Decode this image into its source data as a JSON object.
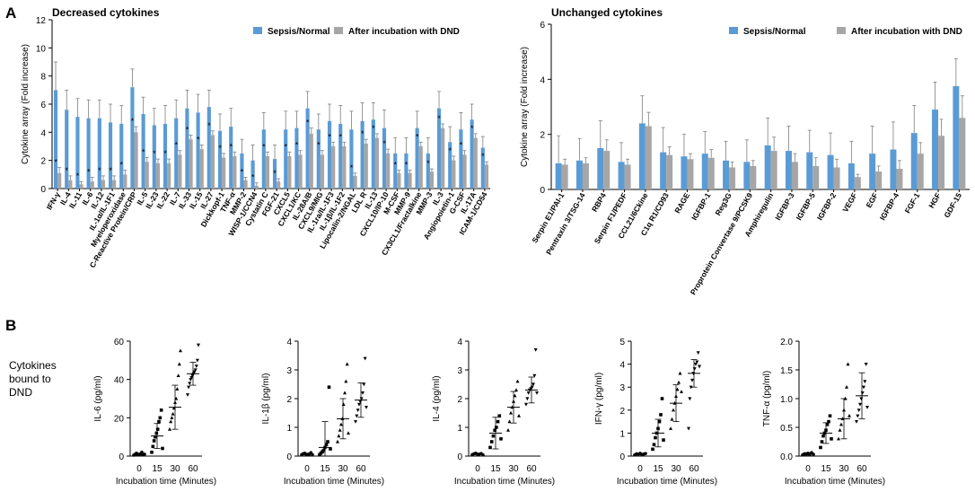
{
  "figure": {
    "panel_a_label": "A",
    "panel_b_label": "B",
    "cytokines_bound_label_lines": [
      "Cytokines",
      "bound to",
      "DND"
    ]
  },
  "colors": {
    "sepsis": "#5b9bd5",
    "dnd": "#a6a6a6",
    "axis": "#000000",
    "error": "#7f7f7f"
  },
  "chart_data": [
    {
      "id": "decreased",
      "type": "bar",
      "title": "Decreased cytokines",
      "ylabel": "Cytokine array (Fold increase)",
      "ylim": [
        0,
        12
      ],
      "yticks": [
        0,
        2,
        4,
        6,
        8,
        10,
        12
      ],
      "legend": [
        "Sepsis/Normal",
        "After incubation with DND"
      ],
      "legend_position": "top-right",
      "categories": [
        "IFN-γ",
        "IL-4",
        "IL-11",
        "IL-6",
        "IL-12",
        "IL-1α/IL-1F1",
        "Myeloperoxidase",
        "C-Reactive Protein/CRP",
        "IL-5",
        "IL-23",
        "IL-22",
        "IL-7",
        "IL-33",
        "IL-15",
        "IL-27",
        "Dickkopf-1",
        "TNF-α",
        "MMP-2",
        "WISP-1/CCN4",
        "Cystatin C",
        "FGF-21",
        "CXCL5",
        "CXCL1/KC",
        "IL-28A/B",
        "CXCL9/MIG",
        "IL-1ra/IL-1F3",
        "IL-1β/IL-1F2",
        "Lipocalin-2/NGAL",
        "LDL R",
        "IL-13",
        "CXCL10/IP-10",
        "M-CSF",
        "MMP-9",
        "CX3CL1/Fractalkine",
        "MMP-3",
        "IL-3",
        "Angiopoietin-1",
        "G-CSF",
        "IL-17A",
        "ICAM-1/CD54"
      ],
      "series": [
        {
          "name": "Sepsis/Normal",
          "values": [
            7.0,
            5.6,
            5.1,
            5.0,
            5.0,
            4.7,
            4.6,
            7.2,
            5.3,
            4.5,
            4.6,
            5.0,
            5.7,
            5.4,
            5.8,
            4.1,
            4.4,
            2.5,
            2.0,
            4.2,
            2.1,
            4.2,
            4.3,
            5.7,
            4.2,
            4.8,
            4.6,
            4.2,
            4.8,
            4.9,
            4.3,
            2.5,
            2.5,
            4.3,
            2.5,
            5.7,
            3.3,
            4.2,
            4.9,
            2.9
          ],
          "errors": [
            2.0,
            1.4,
            1.3,
            1.3,
            1.3,
            1.3,
            1.3,
            1.3,
            1.2,
            1.2,
            1.3,
            1.3,
            1.3,
            1.3,
            1.2,
            1.2,
            1.3,
            1.0,
            1.1,
            1.2,
            1.0,
            1.3,
            1.2,
            1.2,
            1.1,
            1.2,
            1.3,
            1.3,
            1.3,
            1.2,
            1.3,
            1.1,
            1.1,
            1.2,
            1.1,
            1.2,
            1.1,
            1.2,
            1.1,
            0.8
          ]
        },
        {
          "name": "After incubation with DND",
          "values": [
            1.1,
            0.6,
            0.3,
            0.5,
            0.6,
            0.6,
            1.0,
            4.0,
            1.9,
            1.8,
            1.8,
            2.4,
            3.5,
            2.8,
            3.8,
            2.2,
            2.3,
            0.6,
            0.2,
            2.3,
            0.5,
            2.3,
            2.4,
            3.9,
            2.4,
            3.0,
            3.0,
            0.9,
            3.2,
            3.6,
            2.5,
            1.1,
            1.1,
            3.0,
            1.2,
            4.3,
            2.0,
            2.4,
            3.6,
            1.7
          ],
          "errors": [
            0.4,
            0.3,
            0.2,
            0.3,
            0.3,
            0.3,
            0.3,
            0.4,
            0.3,
            0.3,
            0.3,
            0.3,
            0.3,
            0.3,
            0.3,
            0.3,
            0.3,
            0.2,
            0.2,
            0.3,
            0.2,
            0.3,
            0.3,
            0.4,
            0.3,
            0.3,
            0.3,
            0.2,
            0.3,
            0.3,
            0.3,
            0.2,
            0.2,
            0.3,
            0.2,
            0.3,
            0.3,
            0.3,
            0.3,
            0.2
          ]
        }
      ],
      "significance_marker": "*"
    },
    {
      "id": "unchanged",
      "type": "bar",
      "title": "Unchanged cytokines",
      "ylabel": "Cytokine array (Fold increase)",
      "ylim": [
        0,
        6
      ],
      "yticks": [
        0,
        2,
        4,
        6
      ],
      "legend": [
        "Sepsis/Normal",
        "After incubation with DND"
      ],
      "legend_position": "top-right",
      "categories": [
        "Serpin E1/PAI-1",
        "Pentraxin 3/TSG-14",
        "RBP4",
        "Serpin F1/PEDF",
        "CCL21/6Ckine",
        "C1q R1/CD93",
        "RAGE",
        "IGFBP-1",
        "Reg3G",
        "Proprotein Convertase 9/PCSK9",
        "Amphiregulin",
        "IGFBP-3",
        "IGFBP-5",
        "IGFBP-2",
        "VEGF",
        "EGF",
        "IGFBP-4",
        "FGF-1",
        "HGF",
        "GDF-15"
      ],
      "series": [
        {
          "name": "Sepsis/Normal",
          "values": [
            0.95,
            1.05,
            1.5,
            1.0,
            2.4,
            1.35,
            1.2,
            1.3,
            1.05,
            1.0,
            1.6,
            1.4,
            1.35,
            1.25,
            0.95,
            1.3,
            1.45,
            2.05,
            2.9,
            3.75
          ],
          "errors": [
            1.0,
            0.8,
            1.0,
            0.7,
            1.0,
            0.9,
            0.8,
            0.8,
            0.7,
            0.8,
            1.0,
            0.9,
            0.8,
            0.8,
            0.8,
            1.0,
            1.0,
            1.0,
            1.0,
            1.0
          ]
        },
        {
          "name": "After incubation with DND",
          "values": [
            0.9,
            0.95,
            1.4,
            0.9,
            2.3,
            1.25,
            1.1,
            1.15,
            0.8,
            0.85,
            1.4,
            1.0,
            0.85,
            0.8,
            0.45,
            0.65,
            0.75,
            1.3,
            1.95,
            2.6
          ],
          "errors": [
            0.2,
            0.2,
            0.4,
            0.2,
            0.5,
            0.3,
            0.2,
            0.3,
            0.2,
            0.2,
            0.5,
            0.3,
            0.3,
            0.3,
            0.1,
            0.2,
            0.3,
            0.4,
            0.6,
            0.8
          ]
        }
      ]
    },
    {
      "id": "il6",
      "type": "scatter",
      "ylabel": "IL-6 (pg/ml)",
      "xlabel": "Incubation time (Minutes)",
      "categories": [
        "0",
        "15",
        "30",
        "60"
      ],
      "ylim": [
        0,
        60
      ],
      "yticks": [
        0,
        20,
        40,
        60
      ],
      "ytick_labels": [
        "0",
        "20",
        "40",
        "60"
      ],
      "groups": [
        {
          "x": "0",
          "points": [
            0.5,
            1,
            1.5,
            1,
            0.8,
            1.2,
            2,
            0.6,
            1
          ],
          "mean": 1.0,
          "sd": 0.5
        },
        {
          "x": "15",
          "points": [
            2,
            5,
            8,
            10,
            12,
            14,
            18,
            20,
            24,
            4
          ],
          "mean": 10.5,
          "sd": 6.5
        },
        {
          "x": "30",
          "points": [
            14,
            18,
            20,
            22,
            25,
            28,
            30,
            35,
            42,
            48,
            55
          ],
          "mean": 25.5,
          "sd": 11.5
        },
        {
          "x": "60",
          "points": [
            32,
            36,
            38,
            40,
            41,
            42,
            43,
            44,
            45,
            47,
            50,
            58
          ],
          "mean": 43.0,
          "sd": 6.0
        }
      ]
    },
    {
      "id": "il1b",
      "type": "scatter",
      "ylabel": "IL-1β (pg/ml)",
      "xlabel": "Incubation time (Minutes)",
      "categories": [
        "0",
        "15",
        "30",
        "60"
      ],
      "ylim": [
        0,
        4
      ],
      "yticks": [
        0,
        1,
        2,
        3,
        4
      ],
      "ytick_labels": [
        "0",
        "1",
        "2",
        "3",
        "4"
      ],
      "groups": [
        {
          "x": "0",
          "points": [
            0.05,
            0.08,
            0.1,
            0.06,
            0.04,
            0.07,
            0.12,
            0.05
          ],
          "mean": 0.07,
          "sd": 0.03
        },
        {
          "x": "15",
          "points": [
            0.05,
            0.1,
            0.15,
            0.2,
            0.3,
            0.4,
            0.5,
            2.4,
            0.25
          ],
          "mean": 0.3,
          "sd": 0.9
        },
        {
          "x": "30",
          "points": [
            0.5,
            0.7,
            0.9,
            1.1,
            1.3,
            1.8,
            2.2,
            2.6,
            3.2,
            0.8
          ],
          "mean": 1.3,
          "sd": 0.7
        },
        {
          "x": "60",
          "points": [
            1.2,
            1.4,
            1.6,
            1.8,
            1.9,
            2.0,
            2.2,
            2.5,
            3.4,
            1.7
          ],
          "mean": 1.95,
          "sd": 0.6
        }
      ]
    },
    {
      "id": "il4",
      "type": "scatter",
      "ylabel": "IL-4 (pg/ml)",
      "xlabel": "Incubation time (Minutes)",
      "categories": [
        "0",
        "15",
        "30",
        "60"
      ],
      "ylim": [
        0,
        4
      ],
      "yticks": [
        0,
        1,
        2,
        3,
        4
      ],
      "ytick_labels": [
        "0",
        "1",
        "2",
        "3",
        "4"
      ],
      "groups": [
        {
          "x": "0",
          "points": [
            0.05,
            0.08,
            0.1,
            0.06,
            0.07,
            0.09,
            0.04
          ],
          "mean": 0.07,
          "sd": 0.02
        },
        {
          "x": "15",
          "points": [
            0.3,
            0.5,
            0.7,
            0.9,
            1.0,
            1.2,
            1.4,
            0.6
          ],
          "mean": 0.8,
          "sd": 0.55
        },
        {
          "x": "30",
          "points": [
            0.9,
            1.2,
            1.5,
            1.7,
            1.9,
            2.1,
            2.3,
            2.6,
            1.4
          ],
          "mean": 1.7,
          "sd": 0.55
        },
        {
          "x": "60",
          "points": [
            1.8,
            2.0,
            2.2,
            2.3,
            2.35,
            2.4,
            2.5,
            2.8,
            3.7,
            2.2
          ],
          "mean": 2.3,
          "sd": 0.45
        }
      ]
    },
    {
      "id": "ifng",
      "type": "scatter",
      "ylabel": "IFN-γ (pg/ml)",
      "xlabel": "Incubation time (Minutes)",
      "categories": [
        "0",
        "15",
        "30",
        "60"
      ],
      "ylim": [
        0,
        5
      ],
      "yticks": [
        0,
        1,
        2,
        3,
        4,
        5
      ],
      "ytick_labels": [
        "0",
        "1",
        "2",
        "3",
        "4",
        "5"
      ],
      "groups": [
        {
          "x": "0",
          "points": [
            0.05,
            0.1,
            0.08,
            0.12,
            0.06,
            0.09,
            0.11
          ],
          "mean": 0.09,
          "sd": 0.03
        },
        {
          "x": "15",
          "points": [
            0.3,
            0.5,
            0.8,
            1.0,
            1.2,
            1.5,
            1.8,
            2.5,
            0.7
          ],
          "mean": 1.0,
          "sd": 0.6
        },
        {
          "x": "30",
          "points": [
            1.2,
            1.6,
            2.0,
            2.3,
            2.6,
            2.9,
            3.2,
            3.6,
            2.8
          ],
          "mean": 2.3,
          "sd": 0.8
        },
        {
          "x": "60",
          "points": [
            1.2,
            2.5,
            3.0,
            3.3,
            3.6,
            3.8,
            4.0,
            4.1,
            4.5,
            3.9
          ],
          "mean": 3.6,
          "sd": 0.6
        }
      ]
    },
    {
      "id": "tnfa",
      "type": "scatter",
      "ylabel": "TNF-α (pg/ml)",
      "xlabel": "Incubation time (Minutes)",
      "categories": [
        "0",
        "15",
        "30",
        "60"
      ],
      "ylim": [
        0,
        2.0
      ],
      "yticks": [
        0,
        0.5,
        1.0,
        1.5,
        2.0
      ],
      "ytick_labels": [
        "0.0",
        "0.5",
        "1.0",
        "1.5",
        "2.0"
      ],
      "groups": [
        {
          "x": "0",
          "points": [
            0.02,
            0.04,
            0.03,
            0.05,
            0.02,
            0.06,
            0.03
          ],
          "mean": 0.04,
          "sd": 0.02
        },
        {
          "x": "15",
          "points": [
            0.15,
            0.25,
            0.35,
            0.4,
            0.45,
            0.55,
            0.6,
            0.7,
            0.3
          ],
          "mean": 0.4,
          "sd": 0.18
        },
        {
          "x": "30",
          "points": [
            0.3,
            0.45,
            0.55,
            0.65,
            0.8,
            1.0,
            1.2,
            1.6,
            0.7
          ],
          "mean": 0.65,
          "sd": 0.35
        },
        {
          "x": "60",
          "points": [
            0.6,
            0.7,
            0.8,
            0.9,
            1.0,
            1.1,
            1.2,
            1.3,
            1.6,
            0.85
          ],
          "mean": 1.05,
          "sd": 0.4
        }
      ]
    }
  ]
}
